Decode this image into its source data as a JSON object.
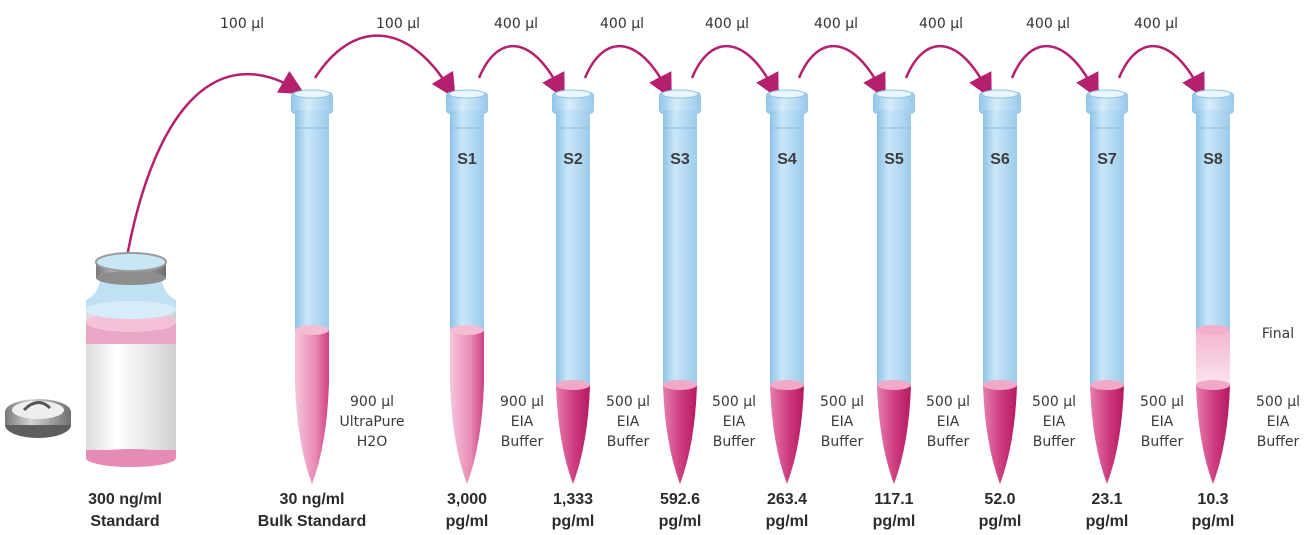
{
  "arrows": [
    {
      "volume": "100 µl"
    },
    {
      "volume": "100 µl"
    },
    {
      "volume": "400 µl"
    },
    {
      "volume": "400 µl"
    },
    {
      "volume": "400 µl"
    },
    {
      "volume": "400 µl"
    },
    {
      "volume": "400 µl"
    },
    {
      "volume": "400 µl"
    },
    {
      "volume": "400 µl"
    }
  ],
  "vial": {
    "concentration": "300 ng/ml",
    "label": "Standard"
  },
  "tubes": [
    {
      "id": "",
      "side": [
        "900 µl",
        "UltraPure",
        "H2O"
      ],
      "concentration": [
        "30 ng/ml",
        "Bulk Standard"
      ]
    },
    {
      "id": "S1",
      "side": [
        "900 µl",
        "EIA",
        "Buffer"
      ],
      "concentration": [
        "3,000",
        "pg/ml"
      ]
    },
    {
      "id": "S2",
      "side": [
        "500 µl",
        "EIA",
        "Buffer"
      ],
      "concentration": [
        "1,333",
        "pg/ml"
      ]
    },
    {
      "id": "S3",
      "side": [
        "500 µl",
        "EIA",
        "Buffer"
      ],
      "concentration": [
        "592.6",
        "pg/ml"
      ]
    },
    {
      "id": "S4",
      "side": [
        "500 µl",
        "EIA",
        "Buffer"
      ],
      "concentration": [
        "263.4",
        "pg/ml"
      ]
    },
    {
      "id": "S5",
      "side": [
        "500 µl",
        "EIA",
        "Buffer"
      ],
      "concentration": [
        "117.1",
        "pg/ml"
      ]
    },
    {
      "id": "S6",
      "side": [
        "500 µl",
        "EIA",
        "Buffer"
      ],
      "concentration": [
        "52.0",
        "pg/ml"
      ]
    },
    {
      "id": "S7",
      "side": [
        "500 µl",
        "EIA",
        "Buffer"
      ],
      "concentration": [
        "23.1",
        "pg/ml"
      ]
    },
    {
      "id": "S8",
      "side": [
        "500 µl",
        "EIA",
        "Buffer"
      ],
      "final_label": "Final",
      "concentration": [
        "10.3",
        "pg/ml"
      ]
    }
  ],
  "colors": {
    "arrow": "#b5206e",
    "tube": "#a9d3ef",
    "liquid": "#c2185b"
  }
}
